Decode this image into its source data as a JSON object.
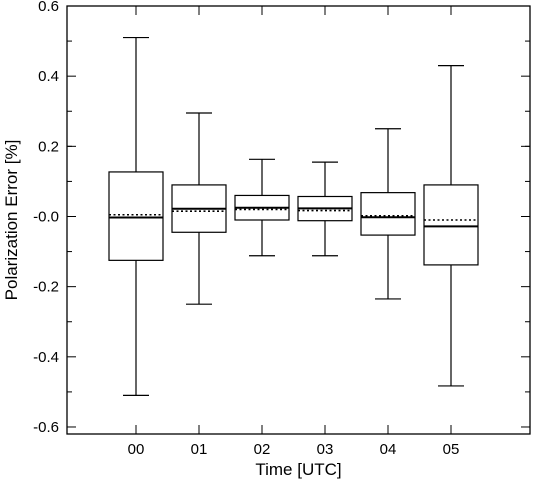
{
  "chart_data": {
    "type": "box",
    "title": "",
    "xlabel": "Time [UTC]",
    "ylabel": "Polarization Error [%]",
    "ylim": [
      -0.62,
      0.6
    ],
    "yticks": [
      "-0.6",
      "-0.4",
      "-0.2",
      "-0.0",
      "0.2",
      "0.4",
      "0.6"
    ],
    "grid": false,
    "categories": [
      "00",
      "01",
      "02",
      "03",
      "04",
      "05"
    ],
    "boxes": [
      {
        "category": "00",
        "whisker_low": -0.51,
        "q1": -0.125,
        "median": -0.003,
        "mean": 0.005,
        "q3": 0.127,
        "whisker_high": 0.51
      },
      {
        "category": "01",
        "whisker_low": -0.25,
        "q1": -0.045,
        "median": 0.022,
        "mean": 0.015,
        "q3": 0.09,
        "whisker_high": 0.295
      },
      {
        "category": "02",
        "whisker_low": -0.112,
        "q1": -0.01,
        "median": 0.025,
        "mean": 0.02,
        "q3": 0.06,
        "whisker_high": 0.163
      },
      {
        "category": "03",
        "whisker_low": -0.112,
        "q1": -0.012,
        "median": 0.023,
        "mean": 0.017,
        "q3": 0.057,
        "whisker_high": 0.155
      },
      {
        "category": "04",
        "whisker_low": -0.235,
        "q1": -0.053,
        "median": -0.002,
        "mean": 0.002,
        "q3": 0.068,
        "whisker_high": 0.25
      },
      {
        "category": "05",
        "whisker_low": -0.483,
        "q1": -0.138,
        "median": -0.028,
        "mean": -0.01,
        "q3": 0.09,
        "whisker_high": 0.43
      }
    ],
    "line_styles": {
      "median": "solid",
      "mean": "dotted"
    },
    "colors": {
      "stroke": "#000000",
      "background": "#ffffff"
    }
  }
}
